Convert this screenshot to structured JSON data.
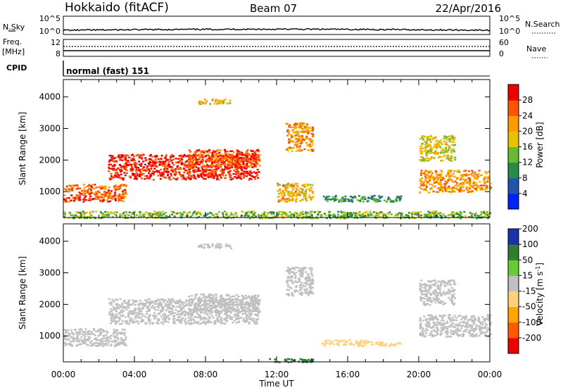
{
  "header": {
    "station": "Hokkaido (fitACF)",
    "beam": "Beam 07",
    "date": "22/Apr/2016"
  },
  "strips": {
    "nsky_label": "N.Sky",
    "nsky_ticks": [
      "10^5",
      "10^0"
    ],
    "nsearch_label": "N.Search",
    "nsearch_ticks": [
      "10^5",
      "10^0"
    ],
    "freq_label_1": "Freq.",
    "freq_label_2": "[MHz]",
    "freq_ticks": [
      "12",
      "8"
    ],
    "nave_label": "Nave",
    "nave_ticks": [
      "60",
      "0"
    ],
    "cpid_label": "CPID",
    "cpid_text": "normal (fast) 151"
  },
  "colors": {
    "power": [
      "#0022ff",
      "#2255aa",
      "#2a8a4a",
      "#66bb33",
      "#e8c400",
      "#ff9a00",
      "#ff5500",
      "#ee0000"
    ],
    "velocity": [
      "#ee0000",
      "#ff5a00",
      "#ffa500",
      "#ffd27a",
      "#c0c0c0",
      "#66cc33",
      "#2e7d32",
      "#1a33aa"
    ],
    "data_sample": "#c8c8c8"
  },
  "chart_data": [
    {
      "type": "heatmap",
      "title": "",
      "ylabel": "Slant Range [km]",
      "xlabel": "",
      "x_ticks": [
        "00:00",
        "04:00",
        "08:00",
        "12:00",
        "16:00",
        "20:00",
        "00:00"
      ],
      "y_ticks": [
        "1000",
        "2000",
        "3000",
        "4000"
      ],
      "x_range_hours": [
        0,
        24
      ],
      "ylim": [
        180,
        4550
      ],
      "colorbar": {
        "label": "Power [dB]",
        "ticks": [
          "4",
          "8",
          "12",
          "16",
          "20",
          "24",
          "28"
        ],
        "range": [
          0,
          32
        ]
      },
      "echo_regions": [
        {
          "t": [
            0,
            3.5
          ],
          "range_km": [
            700,
            1250
          ],
          "power_db": 26
        },
        {
          "t": [
            2.5,
            11
          ],
          "range_km": [
            1400,
            2200
          ],
          "power_db": 29
        },
        {
          "t": [
            7,
            11
          ],
          "range_km": [
            1800,
            2350
          ],
          "power_db": 26
        },
        {
          "t": [
            7.5,
            9.5
          ],
          "range_km": [
            3800,
            3950
          ],
          "power_db": 18
        },
        {
          "t": [
            12.5,
            14
          ],
          "range_km": [
            2300,
            3200
          ],
          "power_db": 22
        },
        {
          "t": [
            12,
            14
          ],
          "range_km": [
            700,
            1300
          ],
          "power_db": 20
        },
        {
          "t": [
            14.5,
            19
          ],
          "range_km": [
            700,
            900
          ],
          "power_db": 10
        },
        {
          "t": [
            20,
            24
          ],
          "range_km": [
            1000,
            1700
          ],
          "power_db": 22
        },
        {
          "t": [
            20,
            22
          ],
          "range_km": [
            2000,
            2800
          ],
          "power_db": 18
        },
        {
          "t": [
            0,
            24
          ],
          "range_km": [
            180,
            400
          ],
          "power_db": 14
        }
      ]
    },
    {
      "type": "heatmap",
      "title": "",
      "ylabel": "Slant Range [km]",
      "xlabel": "Time UT",
      "x_ticks": [
        "00:00",
        "04:00",
        "08:00",
        "12:00",
        "16:00",
        "20:00",
        "00:00"
      ],
      "y_ticks": [
        "1000",
        "2000",
        "3000",
        "4000"
      ],
      "x_range_hours": [
        0,
        24
      ],
      "ylim": [
        180,
        4550
      ],
      "colorbar": {
        "label": "Velocity [m s^-1]",
        "ticks": [
          "-200",
          "-100",
          "-50",
          "-15",
          "15",
          "50",
          "100",
          "200"
        ]
      },
      "echo_regions": [
        {
          "t": [
            0,
            3.5
          ],
          "range_km": [
            700,
            1250
          ],
          "velocity": 0
        },
        {
          "t": [
            2.5,
            11
          ],
          "range_km": [
            1400,
            2200
          ],
          "velocity": 0
        },
        {
          "t": [
            7,
            11
          ],
          "range_km": [
            1800,
            2350
          ],
          "velocity": 0
        },
        {
          "t": [
            7.5,
            9.5
          ],
          "range_km": [
            3800,
            3950
          ],
          "velocity": 5
        },
        {
          "t": [
            12.5,
            14
          ],
          "range_km": [
            2300,
            3200
          ],
          "velocity": 0
        },
        {
          "t": [
            14.5,
            17
          ],
          "range_km": [
            700,
            900
          ],
          "velocity": -40
        },
        {
          "t": [
            17,
            19
          ],
          "range_km": [
            700,
            850
          ],
          "velocity": -30
        },
        {
          "t": [
            11.5,
            14
          ],
          "range_km": [
            180,
            300
          ],
          "velocity": 60
        },
        {
          "t": [
            20,
            24
          ],
          "range_km": [
            1000,
            1700
          ],
          "velocity": 0
        },
        {
          "t": [
            20,
            22
          ],
          "range_km": [
            2000,
            2800
          ],
          "velocity": 0
        }
      ]
    }
  ]
}
